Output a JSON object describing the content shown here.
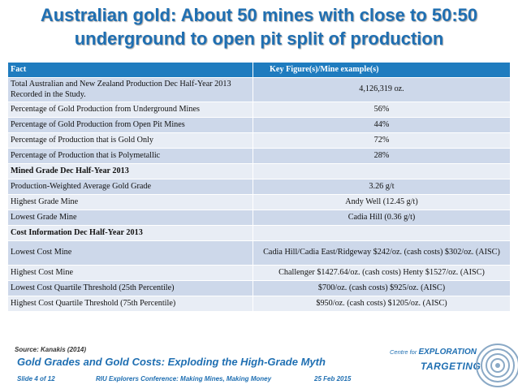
{
  "title": {
    "line1": "Australian gold: About 50 mines with close to 50:50",
    "line2": "underground to open pit split of production"
  },
  "table": {
    "headers": [
      "Fact",
      "Key Figure(s)/Mine example(s)"
    ],
    "rows": [
      [
        "Total Australian and New Zealand Production Dec Half-Year 2013 Recorded in the Study.",
        "4,126,319 oz."
      ],
      [
        "Percentage of Gold Production from Underground Mines",
        "56%"
      ],
      [
        "Percentage of Gold Production from Open Pit Mines",
        "44%"
      ],
      [
        "Percentage of Production that is Gold Only",
        "72%"
      ],
      [
        "Percentage of Production that is Polymetallic",
        "28%"
      ],
      [
        "Mined Grade Dec Half-Year 2013",
        ""
      ],
      [
        "Production-Weighted Average Gold Grade",
        "3.26 g/t"
      ],
      [
        "Highest Grade Mine",
        "Andy Well (12.45 g/t)"
      ],
      [
        "Lowest Grade Mine",
        "Cadia Hill (0.36 g/t)"
      ],
      [
        "Cost Information Dec Half-Year 2013",
        ""
      ],
      [
        "Lowest Cost Mine",
        "Cadia Hill/Cadia East/Ridgeway $242/oz. (cash costs) $302/oz. (AISC)"
      ],
      [
        "Highest Cost Mine",
        "Challenger $1427.64/oz. (cash costs) Henty $1527/oz. (AISC)"
      ],
      [
        "Lowest Cost Quartile Threshold (25th Percentile)",
        "$700/oz. (cash costs) $925/oz. (AISC)"
      ],
      [
        "Highest Cost Quartile Threshold (75th Percentile)",
        "$950/oz. (cash costs) $1205/oz. (AISC)"
      ]
    ]
  },
  "source": "Source: Kanakis (2014)",
  "subtitle": "Gold Grades and Gold Costs: Exploding the High-Grade Myth",
  "footer": {
    "slide": "Slide 4 of 12",
    "conference": "RIU Explorers Conference: Making Mines, Making Money",
    "date": "25 Feb 2015"
  },
  "logo": {
    "line1_prefix": "Centre for",
    "line1_main": "EXPLORATION",
    "line2": "TARGETING"
  },
  "colors": {
    "title": "#1f6fb2",
    "header_bg": "#1f7cbf",
    "row_dark": "#cdd8ea",
    "row_light": "#e8edf5"
  }
}
